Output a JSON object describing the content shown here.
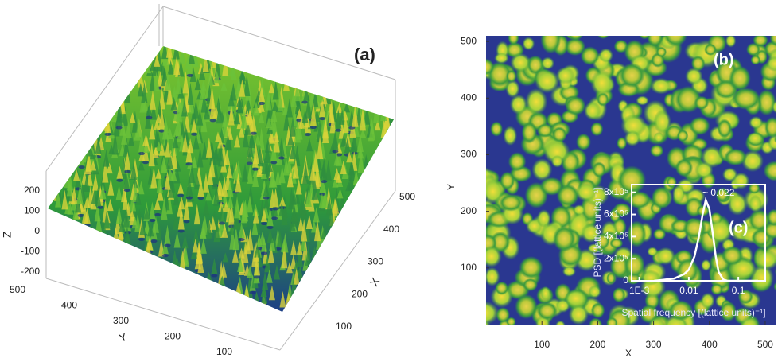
{
  "chart_data": [
    {
      "type": "surface3d",
      "label": "(a)",
      "xlabel": "X",
      "ylabel": "Y",
      "zlabel": "Z",
      "xticks": [
        100,
        200,
        300,
        400,
        500
      ],
      "yticks": [
        100,
        200,
        300,
        400,
        500
      ],
      "zticks": [
        -200,
        -100,
        0,
        100,
        200
      ]
    },
    {
      "type": "heatmap",
      "label": "(b)",
      "xlabel": "X",
      "ylabel": "Y",
      "xlim": [
        0,
        520
      ],
      "ylim": [
        0,
        510
      ],
      "xticks": [
        100,
        200,
        300,
        400,
        500
      ],
      "yticks": [
        100,
        200,
        300,
        400,
        500
      ]
    },
    {
      "type": "line",
      "label": "(c)",
      "xlabel": "Spatial frequency [(lattice units)⁻¹]",
      "ylabel": "PSD [(lattice units)⁻¹]",
      "annotation": "~ 0.022",
      "xscale": "log",
      "color": "#ffffff",
      "xlim": [
        0.0007,
        0.35
      ],
      "ylim": [
        0,
        870000
      ],
      "xticks": [
        {
          "value": 0.001,
          "label": "1E-3"
        },
        0.01,
        0.1
      ],
      "yticks": [
        0,
        {
          "value": 200000,
          "label": "2x10⁵"
        },
        {
          "value": 400000,
          "label": "4x10⁵"
        },
        {
          "value": 600000,
          "label": "6x10⁵"
        },
        {
          "value": 800000,
          "label": "8x10⁵"
        }
      ],
      "x": [
        0.002,
        0.005,
        0.008,
        0.01,
        0.013,
        0.016,
        0.019,
        0.022,
        0.026,
        0.03,
        0.035,
        0.04,
        0.05,
        0.06,
        0.1,
        0.25
      ],
      "values": [
        0,
        20000,
        60000,
        100000,
        220000,
        400000,
        600000,
        730000,
        650000,
        450000,
        220000,
        80000,
        10000,
        0,
        0,
        0
      ]
    }
  ]
}
